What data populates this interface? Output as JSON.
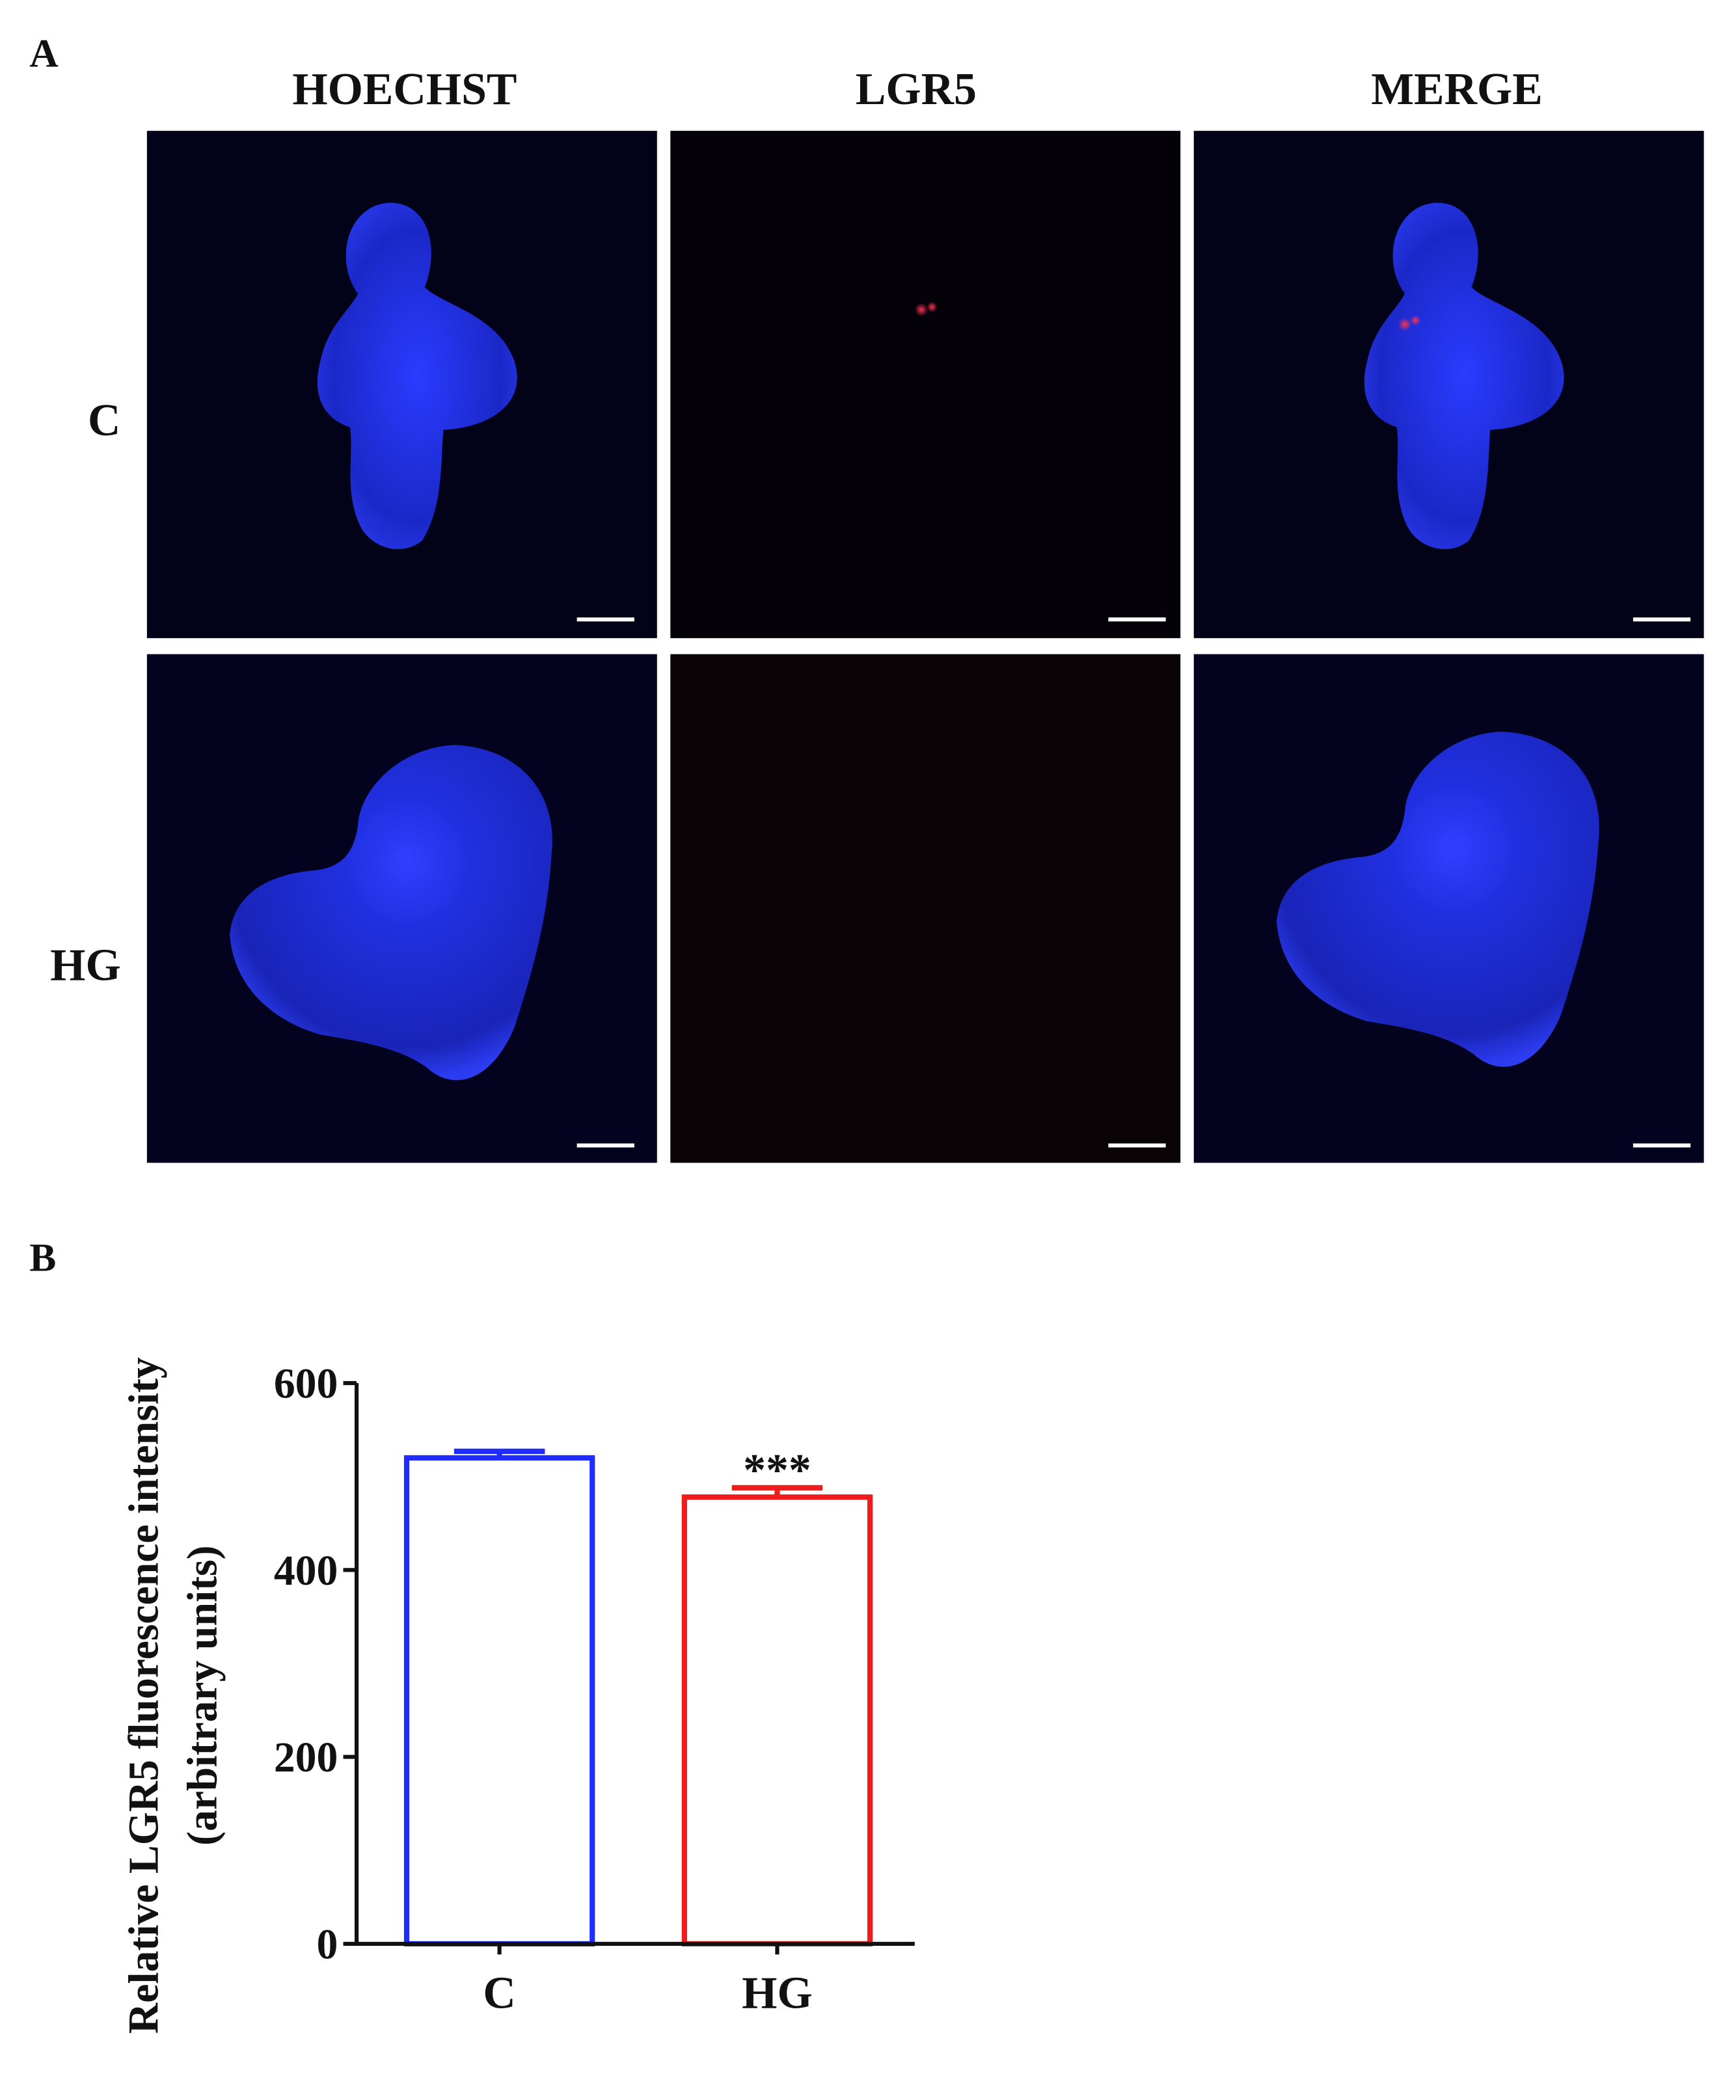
{
  "panel_labels": [
    "A",
    "B"
  ],
  "columns": [
    "HOECHST",
    "LGR5",
    "MERGE"
  ],
  "rows": [
    "C",
    "HG"
  ],
  "chart_data": {
    "type": "bar",
    "ylabel": [
      "Relative LGR5 fluorescence intensity",
      "(arbitrary units)"
    ],
    "categories": [
      "C",
      "HG"
    ],
    "values": [
      520,
      478
    ],
    "errors": [
      7,
      10
    ],
    "colors": [
      "#1f2bff",
      "#ee1c1c"
    ],
    "ylim": [
      0,
      600
    ],
    "yticks": [
      0,
      200,
      400,
      600
    ],
    "annotations": [
      {
        "text": "***",
        "x": "HG"
      }
    ]
  }
}
